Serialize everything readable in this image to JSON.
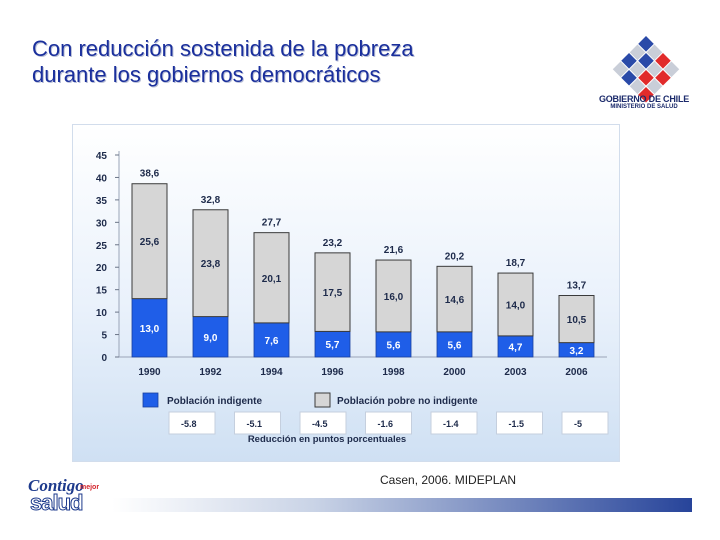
{
  "slide": {
    "title_line1": "Con reducción sostenida de la pobreza",
    "title_line2": "durante los gobiernos democráticos",
    "source": "Casen, 2006. MIDEPLAN"
  },
  "logos": {
    "government_name": "GOBIERNO DE CHILE",
    "government_ministry": "MINISTERIO DE SALUD",
    "campaign_brand": "Contigo mejor salud"
  },
  "chart_data": {
    "type": "bar",
    "stacked": true,
    "categories": [
      "1990",
      "1992",
      "1994",
      "1996",
      "1998",
      "2000",
      "2003",
      "2006"
    ],
    "series": [
      {
        "name": "Población indigente",
        "values": [
          13.0,
          9.0,
          7.6,
          5.7,
          5.6,
          5.6,
          4.7,
          3.2
        ],
        "labels": [
          "13,0",
          "9,0",
          "7,6",
          "5,7",
          "5,6",
          "5,6",
          "4,7",
          "3,2"
        ],
        "color": "#1f5ee8"
      },
      {
        "name": "Población pobre no indigente",
        "values": [
          25.6,
          23.8,
          20.1,
          17.5,
          16.0,
          14.6,
          14.0,
          10.5
        ],
        "labels": [
          "25,6",
          "23,8",
          "20,1",
          "17,5",
          "16,0",
          "14,6",
          "14,0",
          "10,5"
        ],
        "color": "#d6d6d6"
      }
    ],
    "totals": [
      38.6,
      32.8,
      27.7,
      23.2,
      21.6,
      20.2,
      18.7,
      13.7
    ],
    "total_labels": [
      "38,6",
      "32,8",
      "27,7",
      "23,2",
      "21,6",
      "20,2",
      "18,7",
      "13,7"
    ],
    "ylim": [
      0,
      45
    ],
    "yticks": [
      "0",
      "5",
      "10",
      "15",
      "20",
      "25",
      "30",
      "35",
      "40",
      "45"
    ],
    "reduction_title": "Reducción en puntos porcentuales",
    "reductions": [
      "-5.8",
      "-5.1",
      "-4.5",
      "-1.6",
      "-1.4",
      "-1.5",
      "-5"
    ],
    "legend_position": "bottom"
  }
}
